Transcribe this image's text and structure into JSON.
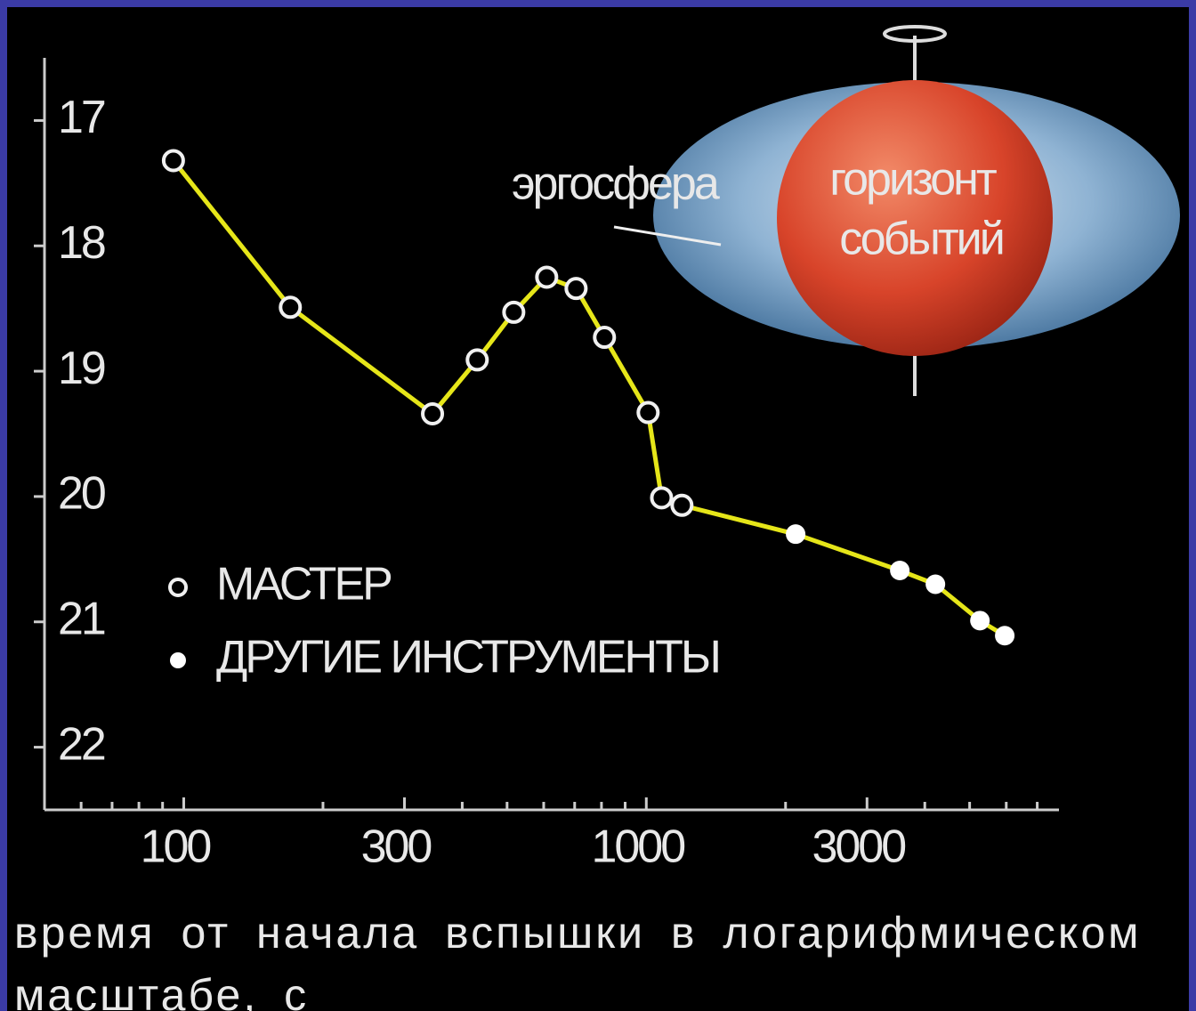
{
  "chart_data": {
    "type": "line",
    "x_log": true,
    "xlim": [
      50,
      7800
    ],
    "xticks": [
      100,
      300,
      1000,
      3000
    ],
    "xminorticks": [
      60,
      70,
      80,
      90,
      200,
      400,
      500,
      600,
      700,
      800,
      900,
      2000,
      4000,
      5000,
      6000,
      7000
    ],
    "ylim": [
      22.5,
      16.5
    ],
    "yticks": [
      17,
      18,
      19,
      20,
      21,
      22
    ],
    "line_color": "#e6e619",
    "series": [
      {
        "name": "МАСТЕР",
        "marker": "open",
        "color": "#f0f0f0",
        "x": [
          95,
          170,
          345,
          431,
          517,
          609,
          705,
          812,
          1009,
          1079,
          1194
        ],
        "values": [
          17.32,
          18.49,
          19.34,
          18.91,
          18.53,
          18.25,
          18.34,
          18.73,
          19.33,
          20.01,
          20.07
        ]
      },
      {
        "name": "ДРУГИЕ ИНСТРУМЕНТЫ",
        "marker": "filled",
        "color": "#ffffff",
        "x": [
          2103,
          3532,
          4217,
          5263,
          5955
        ],
        "values": [
          20.3,
          20.59,
          20.7,
          20.99,
          21.11
        ]
      }
    ],
    "xlabel": "время от начала вспышки в логарифмическом масштабе, с"
  },
  "illustration": {
    "ergosphere_label": "эргосфера",
    "horizon_label_lines": [
      "горизонт",
      "событий"
    ]
  }
}
